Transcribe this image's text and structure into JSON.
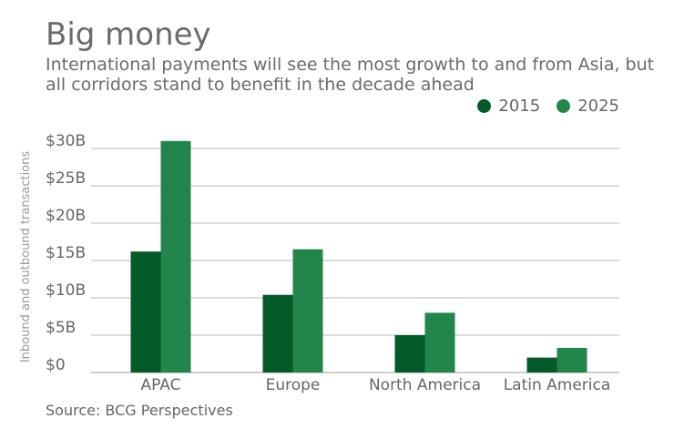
{
  "chart_data": {
    "type": "bar",
    "title": "Big money",
    "subtitle": "International payments will see the most growth to and from Asia, but all corridors stand to benefit in the decade ahead",
    "ylabel": "Inbound and outbound transactions",
    "xlabel": "",
    "categories": [
      "APAC",
      "Europe",
      "North America",
      "Latin America"
    ],
    "series": [
      {
        "name": "2015",
        "values": [
          16.2,
          10.4,
          5.0,
          2.0
        ],
        "color": "#045a28"
      },
      {
        "name": "2025",
        "values": [
          31.0,
          16.5,
          8.0,
          3.3
        ],
        "color": "#22864a"
      }
    ],
    "ylim": [
      0,
      30
    ],
    "yticks": [
      {
        "value": 0,
        "label": "$0"
      },
      {
        "value": 5,
        "label": "$5B"
      },
      {
        "value": 10,
        "label": "$10B"
      },
      {
        "value": 15,
        "label": "$15B"
      },
      {
        "value": 20,
        "label": "$20B"
      },
      {
        "value": 25,
        "label": "$25B"
      },
      {
        "value": 30,
        "label": "$30B"
      }
    ],
    "grid": true,
    "legend_position": "top-right",
    "source": "Source: BCG Perspectives"
  }
}
